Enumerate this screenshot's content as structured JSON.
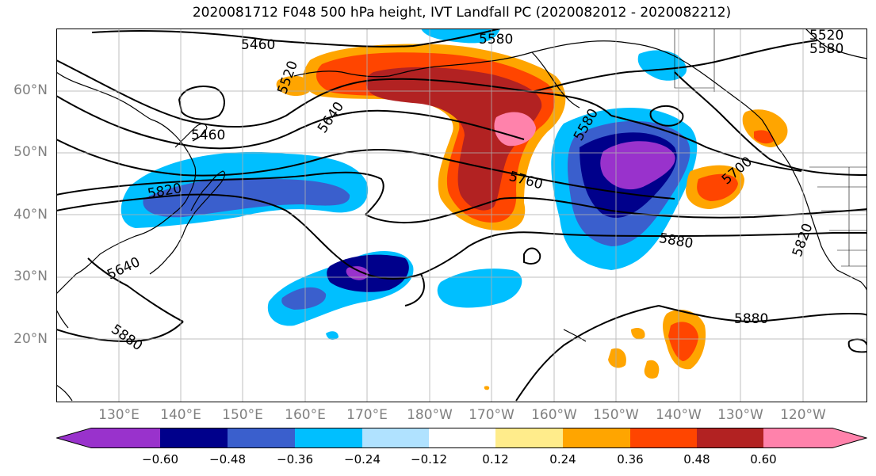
{
  "title": "2020081712 F048 500 hPa height, IVT Landfall PC (2020082012 - 2020082212)",
  "lat_labels": [
    "60°N",
    "50°N",
    "40°N",
    "30°N",
    "20°N"
  ],
  "lon_labels": [
    "130°E",
    "140°E",
    "150°E",
    "160°E",
    "170°E",
    "180°W",
    "170°W",
    "160°W",
    "150°W",
    "140°W",
    "130°W",
    "120°W"
  ],
  "contour_labels": [
    "5460",
    "5580",
    "5520",
    "5580",
    "5520",
    "5460",
    "5640",
    "5580",
    "5700",
    "5760",
    "5820",
    "5640",
    "5880",
    "5880",
    "5820",
    "5880"
  ],
  "colorbar": {
    "ticks": [
      "−0.60",
      "−0.48",
      "−0.36",
      "−0.24",
      "−0.12",
      "0.12",
      "0.24",
      "0.36",
      "0.48",
      "0.60"
    ],
    "colors": [
      "#9932CC",
      "#00008B",
      "#3A5FCD",
      "#00BFFF",
      "#B0E2FF",
      "#FFFFFF",
      "#FFEC8B",
      "#FFA500",
      "#FF4500",
      "#B22222",
      "#FF82AB"
    ]
  }
}
